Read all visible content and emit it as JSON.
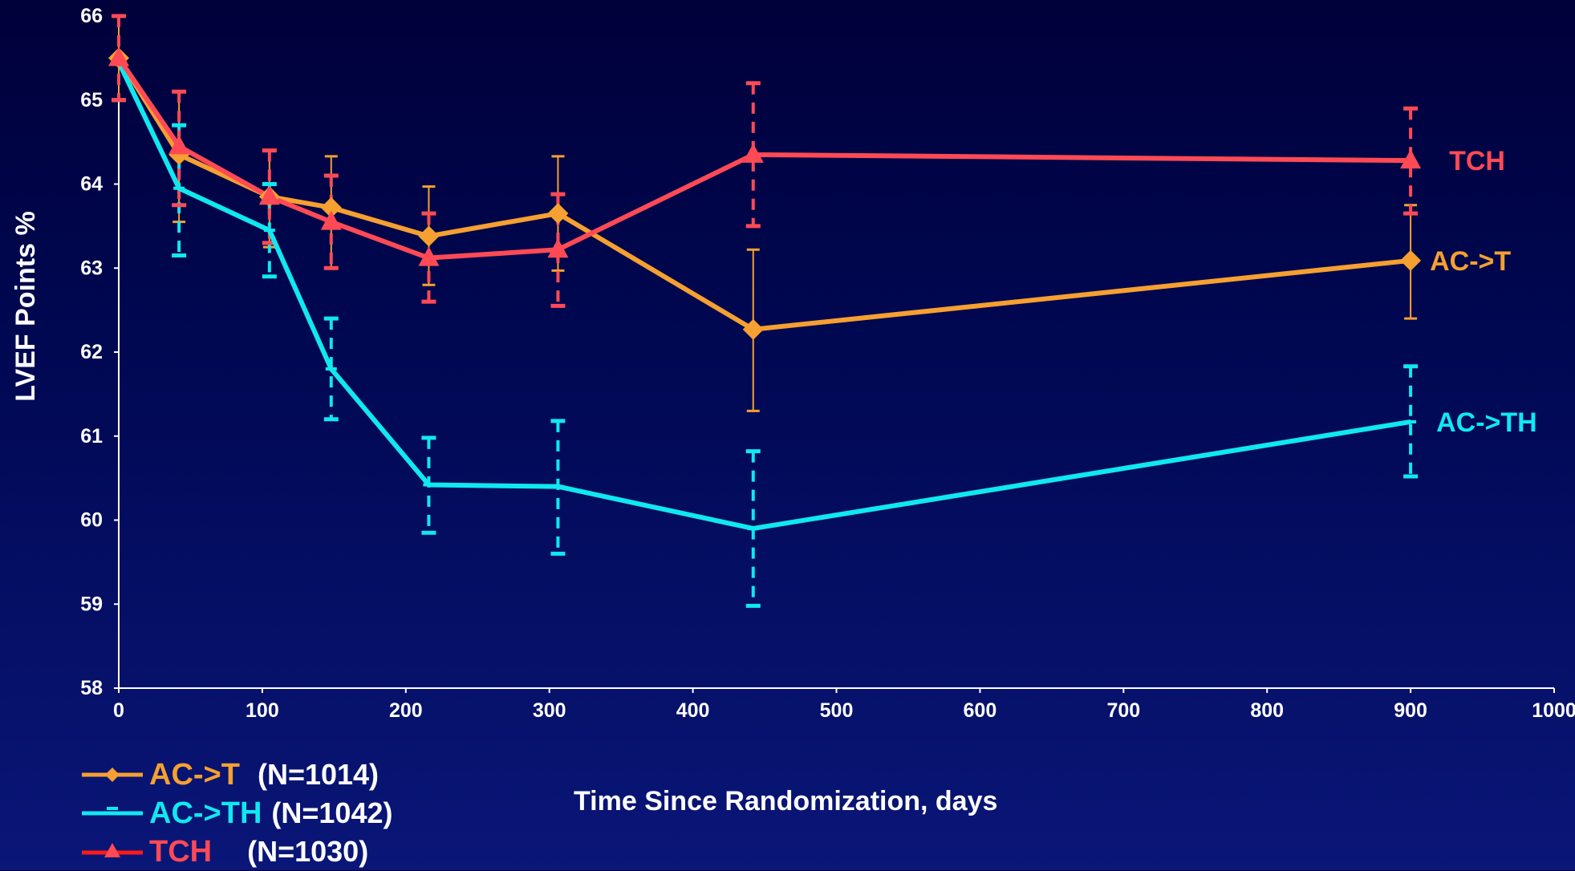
{
  "chart_data": {
    "type": "line",
    "title": "",
    "xlabel": "Time Since Randomization, days",
    "ylabel": "LVEF Points %",
    "xlim": [
      0,
      1000
    ],
    "ylim": [
      58,
      66
    ],
    "xticks": [
      0,
      100,
      200,
      300,
      400,
      500,
      600,
      700,
      800,
      900,
      1000
    ],
    "yticks": [
      58,
      59,
      60,
      61,
      62,
      63,
      64,
      65,
      66
    ],
    "grid": false,
    "legend_position": "bottom-left",
    "series": [
      {
        "name": "AC->T",
        "legend_n": "(N=1014)",
        "end_label": "AC->T",
        "color": "#f5a030",
        "marker": "diamond",
        "x": [
          0,
          42,
          105,
          148,
          216,
          306,
          442,
          900
        ],
        "y": [
          65.5,
          64.35,
          63.85,
          63.72,
          63.38,
          63.65,
          62.27,
          63.09
        ],
        "err_low": [
          65.0,
          63.55,
          63.25,
          63.0,
          62.8,
          62.97,
          61.3,
          62.4
        ],
        "err_high": [
          66.0,
          65.1,
          64.4,
          64.33,
          63.97,
          64.33,
          63.22,
          63.75
        ]
      },
      {
        "name": "AC->TH",
        "legend_n": "(N=1042)",
        "end_label": "AC->TH",
        "color": "#10e8f0",
        "marker": "dash",
        "x": [
          0,
          42,
          105,
          148,
          216,
          306,
          442,
          900
        ],
        "y": [
          65.45,
          63.95,
          63.45,
          61.8,
          60.42,
          60.4,
          59.9,
          61.17
        ],
        "err_low": [
          65.0,
          63.15,
          62.9,
          61.2,
          59.85,
          59.6,
          58.98,
          60.52
        ],
        "err_high": [
          66.0,
          64.7,
          64.0,
          62.4,
          60.98,
          61.18,
          60.82,
          61.83
        ]
      },
      {
        "name": "TCH",
        "legend_n": "(N=1030)",
        "end_label": "TCH",
        "color": "#ff4a55",
        "marker": "triangle",
        "x": [
          0,
          42,
          105,
          148,
          216,
          306,
          442,
          900
        ],
        "y": [
          65.5,
          64.45,
          63.85,
          63.55,
          63.12,
          63.22,
          64.35,
          64.28
        ],
        "err_low": [
          65.0,
          63.75,
          63.3,
          63.0,
          62.6,
          62.55,
          63.5,
          63.65
        ],
        "err_high": [
          66.0,
          65.1,
          64.4,
          64.1,
          63.65,
          63.88,
          65.2,
          64.9
        ]
      }
    ]
  }
}
